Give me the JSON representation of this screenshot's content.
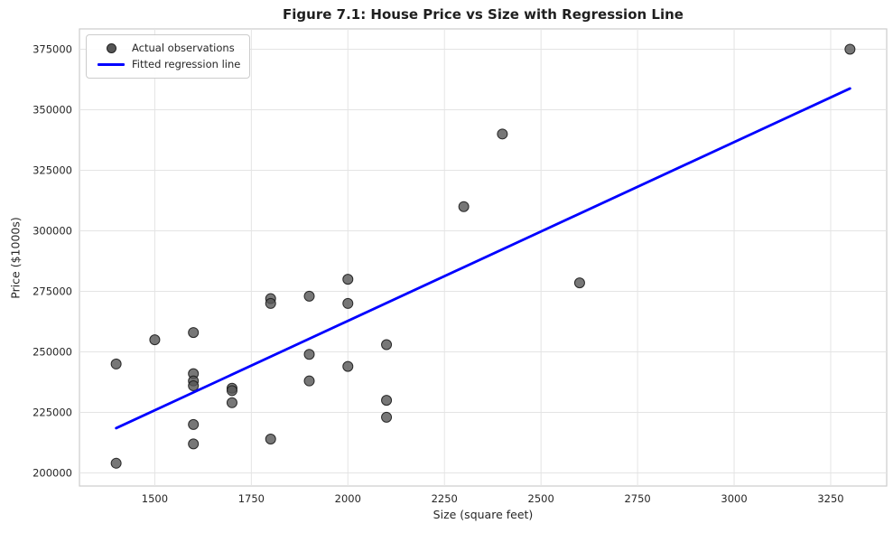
{
  "figure": {
    "title": "Figure 7.1: House Price vs Size with Regression Line"
  },
  "chart_data": {
    "type": "scatter",
    "title": "Figure 7.1: House Price vs Size with Regression Line",
    "xlabel": "Size (square feet)",
    "ylabel": "Price ($1000s)",
    "xlim": [
      1305,
      3395
    ],
    "ylim": [
      194600,
      383400
    ],
    "xticks": [
      1500,
      1750,
      2000,
      2250,
      2500,
      2750,
      3000,
      3250
    ],
    "yticks": [
      200000,
      225000,
      250000,
      275000,
      300000,
      325000,
      350000,
      375000
    ],
    "grid": true,
    "legend_position": "upper-left",
    "series": [
      {
        "name": "Actual observations",
        "kind": "scatter",
        "color": "#555555",
        "edge_color": "#1a1a1a",
        "points": [
          [
            1400,
            245000
          ],
          [
            1400,
            204000
          ],
          [
            1500,
            255000
          ],
          [
            1600,
            258000
          ],
          [
            1600,
            241000
          ],
          [
            1600,
            238000
          ],
          [
            1600,
            236000
          ],
          [
            1600,
            220000
          ],
          [
            1600,
            212000
          ],
          [
            1700,
            235000
          ],
          [
            1700,
            234000
          ],
          [
            1700,
            229000
          ],
          [
            1800,
            272000
          ],
          [
            1800,
            270000
          ],
          [
            1800,
            214000
          ],
          [
            1900,
            273000
          ],
          [
            1900,
            249000
          ],
          [
            1900,
            238000
          ],
          [
            2000,
            280000
          ],
          [
            2000,
            270000
          ],
          [
            2000,
            244000
          ],
          [
            2100,
            253000
          ],
          [
            2100,
            230000
          ],
          [
            2100,
            223000
          ],
          [
            2300,
            310000
          ],
          [
            2400,
            340000
          ],
          [
            2600,
            278500
          ],
          [
            3300,
            375000
          ]
        ]
      },
      {
        "name": "Fitted regression line",
        "kind": "line",
        "color": "#0000ff",
        "points": [
          [
            1400,
            218500
          ],
          [
            3300,
            358800
          ]
        ]
      }
    ]
  },
  "legend": {
    "items": [
      {
        "label": "Actual observations",
        "swatch": "dot",
        "color": "#555555"
      },
      {
        "label": "Fitted regression line",
        "swatch": "line",
        "color": "#0000ff"
      }
    ]
  },
  "colors": {
    "background": "#ffffff",
    "grid": "#e4e4e4",
    "spine": "#cccccc",
    "tick_text": "#262626",
    "scatter": "#555555",
    "line": "#0000ff"
  }
}
